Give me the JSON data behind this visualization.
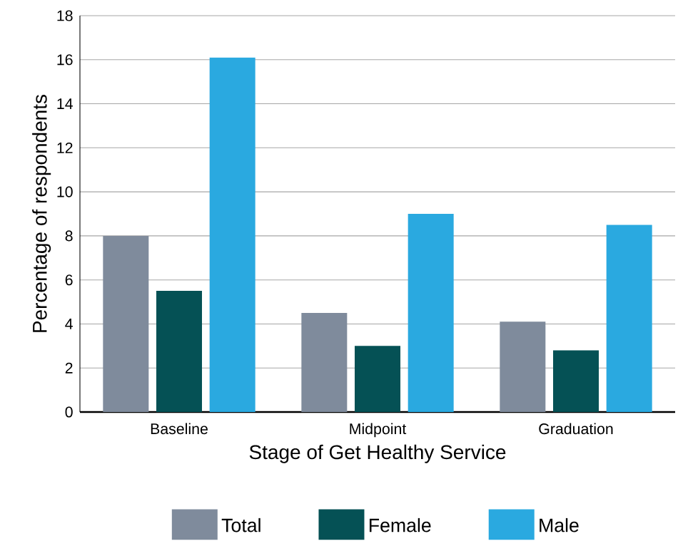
{
  "chart_data": {
    "type": "bar",
    "xlabel": "Stage of Get Healthy Service",
    "ylabel": "Percentage of respondents",
    "categories": [
      "Baseline",
      "Midpoint",
      "Graduation"
    ],
    "series": [
      {
        "name": "Total",
        "color": "#7f8b9c",
        "values": [
          8,
          4.5,
          4.1
        ]
      },
      {
        "name": "Female",
        "color": "#055155",
        "values": [
          5.5,
          3,
          2.8
        ]
      },
      {
        "name": "Male",
        "color": "#2aa9e0",
        "values": [
          16.1,
          9,
          8.5
        ]
      }
    ],
    "ylim": [
      0,
      18
    ],
    "yticks": [
      0,
      2,
      4,
      6,
      8,
      10,
      12,
      14,
      16,
      18
    ],
    "grid": "y",
    "legend": "bottom"
  }
}
